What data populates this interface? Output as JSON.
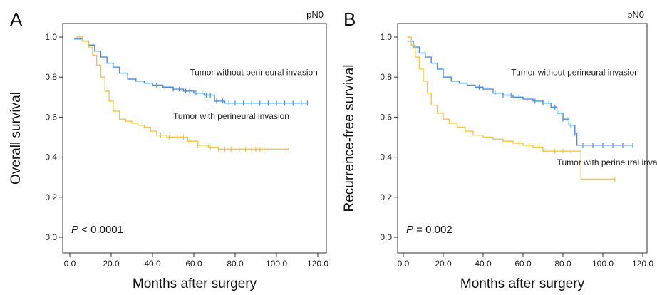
{
  "chart_data": [
    {
      "type": "line",
      "panel_label": "A",
      "subset_label": "pN0",
      "xlabel": "Months after surgery",
      "ylabel": "Overall survival",
      "xlim": [
        0,
        120
      ],
      "ylim": [
        0,
        1.0
      ],
      "x_ticks": [
        "0.0",
        "20.0",
        "40.0",
        "60.0",
        "80.0",
        "100.0",
        "120.0"
      ],
      "y_ticks": [
        "0.0",
        "0.2",
        "0.4",
        "0.6",
        "0.8",
        "1.0"
      ],
      "p_prefix": "P",
      "p_suffix": " < 0.0001",
      "grid": false,
      "series": [
        {
          "name": "Tumor without perineural invasion",
          "color": "#4a90e2",
          "x": [
            2,
            6,
            9,
            12,
            15,
            18,
            21,
            24,
            28,
            32,
            36,
            40,
            45,
            50,
            55,
            60,
            65,
            70,
            75,
            80,
            85,
            90,
            100,
            110,
            115
          ],
          "y": [
            0.99,
            0.98,
            0.96,
            0.93,
            0.9,
            0.87,
            0.85,
            0.82,
            0.79,
            0.78,
            0.77,
            0.76,
            0.75,
            0.74,
            0.73,
            0.72,
            0.71,
            0.68,
            0.67,
            0.67,
            0.67,
            0.67,
            0.67,
            0.67,
            0.67
          ],
          "censor_x": [
            42,
            46,
            50,
            53,
            56,
            58,
            61,
            64,
            66,
            68,
            71,
            74,
            77,
            80,
            84,
            88,
            92,
            96,
            100,
            104,
            108,
            112,
            115
          ]
        },
        {
          "name": "Tumor with perineural invasion",
          "color": "#f5c542",
          "x": [
            3,
            6,
            9,
            11,
            13,
            15,
            17,
            19,
            21,
            24,
            27,
            30,
            33,
            36,
            39,
            42,
            47,
            52,
            57,
            62,
            67,
            72,
            80,
            90,
            100,
            106
          ],
          "y": [
            1.0,
            0.98,
            0.95,
            0.91,
            0.86,
            0.8,
            0.73,
            0.68,
            0.63,
            0.59,
            0.58,
            0.57,
            0.56,
            0.55,
            0.53,
            0.51,
            0.5,
            0.5,
            0.48,
            0.46,
            0.45,
            0.44,
            0.44,
            0.44,
            0.44,
            0.44
          ],
          "censor_x": [
            44,
            48,
            52,
            55,
            58,
            62,
            68,
            72,
            75,
            78,
            82,
            85,
            88,
            90,
            92,
            94,
            106
          ]
        }
      ]
    },
    {
      "type": "line",
      "panel_label": "B",
      "subset_label": "pN0",
      "xlabel": "Months after surgery",
      "ylabel": "Recurrence-free survival",
      "xlim": [
        0,
        120
      ],
      "ylim": [
        0,
        1.0
      ],
      "x_ticks": [
        "0.0",
        "20.0",
        "40.0",
        "60.0",
        "80.0",
        "100.0",
        "120.0"
      ],
      "y_ticks": [
        "0.0",
        "0.2",
        "0.4",
        "0.6",
        "0.8",
        "1.0"
      ],
      "p_prefix": "P",
      "p_suffix": " = 0.002",
      "grid": false,
      "series": [
        {
          "name": "Tumor without perineural invasion",
          "color": "#4a90e2",
          "x": [
            2,
            5,
            8,
            11,
            14,
            17,
            20,
            24,
            28,
            32,
            36,
            40,
            45,
            50,
            55,
            60,
            65,
            70,
            74,
            77,
            80,
            83,
            86,
            87,
            95,
            105,
            115
          ],
          "y": [
            0.98,
            0.95,
            0.92,
            0.9,
            0.87,
            0.84,
            0.8,
            0.78,
            0.77,
            0.76,
            0.75,
            0.74,
            0.72,
            0.71,
            0.7,
            0.69,
            0.68,
            0.67,
            0.65,
            0.62,
            0.59,
            0.56,
            0.52,
            0.46,
            0.46,
            0.46,
            0.46
          ],
          "censor_x": [
            38,
            42,
            46,
            50,
            54,
            58,
            62,
            66,
            70,
            73,
            76,
            78,
            80,
            82,
            84,
            86,
            90,
            95,
            100,
            105,
            110,
            115
          ]
        },
        {
          "name": "Tumor with perineural invasion",
          "color": "#f5c542",
          "x": [
            2,
            4,
            6,
            8,
            10,
            12,
            14,
            17,
            20,
            23,
            27,
            31,
            35,
            40,
            45,
            50,
            55,
            60,
            65,
            70,
            75,
            80,
            85,
            89,
            95,
            106
          ],
          "y": [
            1.0,
            0.96,
            0.9,
            0.84,
            0.78,
            0.72,
            0.66,
            0.62,
            0.59,
            0.57,
            0.55,
            0.53,
            0.51,
            0.5,
            0.49,
            0.48,
            0.47,
            0.46,
            0.45,
            0.43,
            0.43,
            0.43,
            0.43,
            0.29,
            0.29,
            0.29
          ],
          "censor_x": [
            52,
            58,
            63,
            68,
            72,
            76,
            80,
            84,
            106
          ]
        }
      ]
    }
  ],
  "annotations": [
    {
      "text": "Tumor without perineural invasion",
      "panel": 0,
      "x": 58,
      "y": 0.81
    },
    {
      "text": "Tumor with perineural invasion",
      "panel": 0,
      "x": 50,
      "y": 0.59
    },
    {
      "text": "Tumor without perineural invasion",
      "panel": 1,
      "x": 54,
      "y": 0.81
    },
    {
      "text": "Tumor with perineural invasion",
      "panel": 1,
      "x": 77,
      "y": 0.36
    }
  ]
}
